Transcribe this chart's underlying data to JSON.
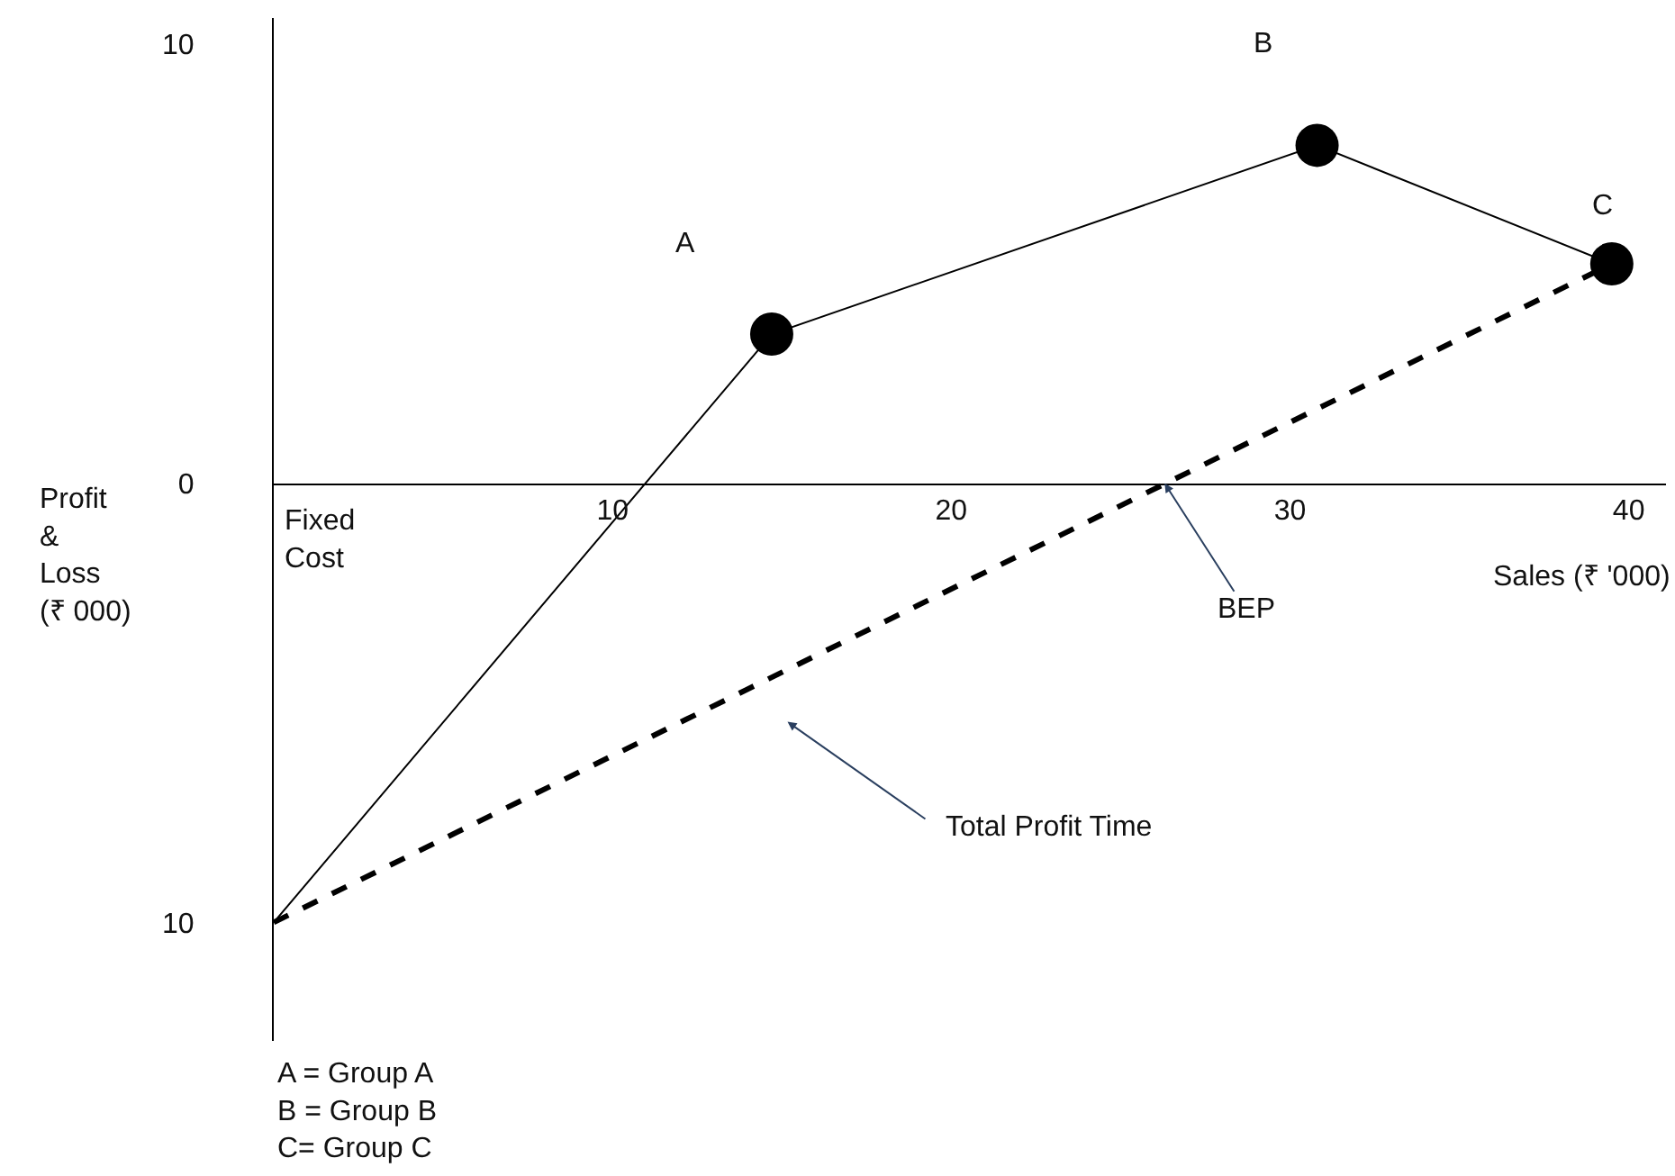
{
  "chart_data": {
    "type": "line",
    "xlabel": "Sales (₹ '000)",
    "ylabel": "Profit\n&\nLoss\n(₹ 000)",
    "xlim": [
      0,
      41.1
    ],
    "ylim": [
      -12.7,
      10.6
    ],
    "xticks": [
      10,
      20,
      30,
      40
    ],
    "yticks": [
      {
        "value": 10,
        "label": "10"
      },
      0,
      {
        "value": -10,
        "label": "10"
      }
    ],
    "series": [
      {
        "color": "#000000",
        "marker": "none",
        "line_style": "solid",
        "x": [
          0,
          14.7,
          30.8,
          39.5
        ],
        "values": [
          -10,
          3.4,
          7.7,
          5.0
        ]
      },
      {
        "type": "scatter",
        "color": "#000000",
        "marker": "circle",
        "x": [
          14.7,
          30.8,
          39.5
        ],
        "values": [
          3.4,
          7.7,
          5.0
        ]
      },
      {
        "type": "line",
        "color": "#000000",
        "marker": "none",
        "line_style": "dashed",
        "x": [
          0,
          39.5
        ],
        "values": [
          -10,
          5.0
        ]
      }
    ],
    "annotations": [
      "A",
      "B",
      "C",
      "Fixed\nCost",
      {
        "text": "BEP",
        "x": 26.3,
        "y": 0
      },
      "Total Profit Time",
      "A = Group A\nB = Group B\nC= Group C"
    ]
  }
}
